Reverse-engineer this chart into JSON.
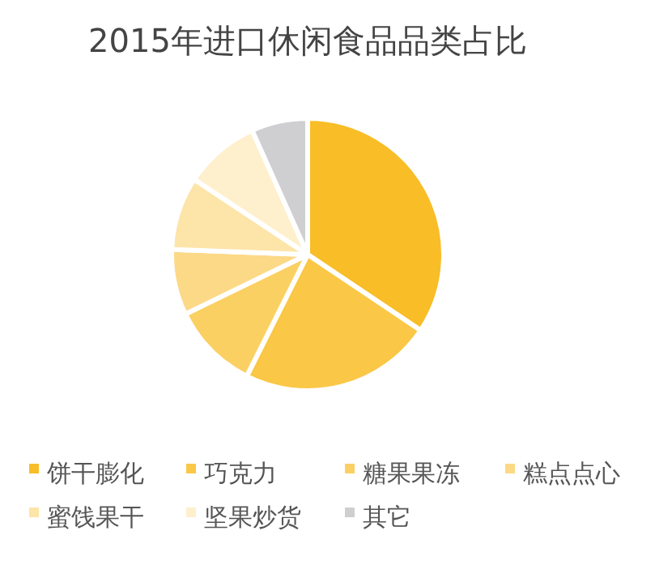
{
  "chart_data": {
    "type": "pie",
    "title": "2015年进口休闲食品品类占比",
    "categories": [
      "饼干膨化",
      "巧克力",
      "糖果果冻",
      "糕点点心",
      "蜜饯果干",
      "坚果炒货",
      "其它"
    ],
    "values": [
      34.4,
      23,
      10.4,
      7.8,
      8.7,
      9,
      6.7
    ],
    "colors": [
      "#f8bd27",
      "#fac746",
      "#fbd062",
      "#fcd986",
      "#fde4a8",
      "#fef0cc",
      "#cfcfd2"
    ],
    "legend": "bottom"
  }
}
